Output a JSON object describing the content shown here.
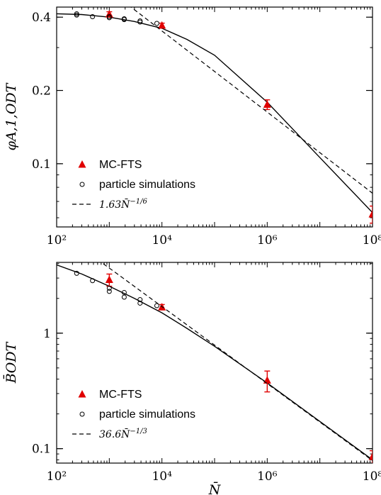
{
  "chart_data": [
    {
      "type": "scatter",
      "xlabel": "",
      "ylabel": "φA,1,ODT",
      "xscale": "log",
      "yscale": "log",
      "xlim": [
        100,
        100000000
      ],
      "ylim": [
        0.055,
        0.44
      ],
      "x_ticks": [
        {
          "v": 100,
          "label": "10²"
        },
        {
          "v": 10000,
          "label": "10⁴"
        },
        {
          "v": 1000000,
          "label": "10⁶"
        },
        {
          "v": 100000000,
          "label": "10⁸"
        }
      ],
      "y_ticks": [
        {
          "v": 0.1,
          "label": "0.1"
        },
        {
          "v": 0.2,
          "label": "0.2"
        },
        {
          "v": 0.4,
          "label": "0.4"
        }
      ],
      "legend_position": "lower-left",
      "series": [
        {
          "name": "MC-FTS",
          "marker": "triangle",
          "color": "#e00000",
          "x": [
            1000,
            10000,
            1000000,
            100000000
          ],
          "y": [
            0.411,
            0.37,
            0.175,
            0.062
          ],
          "err": [
            0.01,
            0.008,
            0.008,
            0.005
          ]
        },
        {
          "name": "particle simulations",
          "marker": "circle-open",
          "color": "#000000",
          "x": [
            240,
            240,
            480,
            1000,
            1000,
            1920,
            1920,
            3840,
            3840,
            8000
          ],
          "y": [
            0.413,
            0.408,
            0.402,
            0.402,
            0.398,
            0.394,
            0.391,
            0.386,
            0.382,
            0.377
          ]
        },
        {
          "name": "1.63N̄−1/6",
          "style": "dashed",
          "legend_label_text": "1.63N̄",
          "legend_label_sup": "−1/6",
          "formula": {
            "coef": 1.63,
            "exp": -0.1666667
          },
          "x_range": [
            1400,
            100000000
          ]
        }
      ],
      "fit_curve": {
        "style": "solid",
        "x": [
          100,
          300,
          1000,
          3000,
          10000,
          30000,
          100000,
          1000000,
          10000000,
          100000000
        ],
        "y": [
          0.413,
          0.41,
          0.4,
          0.384,
          0.36,
          0.324,
          0.279,
          0.179,
          0.106,
          0.063
        ]
      }
    },
    {
      "type": "scatter",
      "xlabel": "N̄",
      "ylabel": "B̄ODT",
      "xscale": "log",
      "yscale": "log",
      "xlim": [
        100,
        100000000
      ],
      "ylim": [
        0.075,
        4.1
      ],
      "x_ticks": [
        {
          "v": 100,
          "label": "10²"
        },
        {
          "v": 10000,
          "label": "10⁴"
        },
        {
          "v": 1000000,
          "label": "10⁶"
        },
        {
          "v": 100000000,
          "label": "10⁸"
        }
      ],
      "y_ticks": [
        {
          "v": 0.1,
          "label": "0.1"
        },
        {
          "v": 1,
          "label": "1"
        }
      ],
      "legend_position": "lower-left",
      "series": [
        {
          "name": "MC-FTS",
          "marker": "triangle",
          "color": "#e00000",
          "x": [
            1000,
            10000,
            1000000,
            100000000
          ],
          "y": [
            2.9,
            1.68,
            0.39,
            0.085
          ],
          "err": [
            0.35,
            0.09,
            0.08,
            0.011
          ]
        },
        {
          "name": "particle simulations",
          "marker": "circle-open",
          "color": "#000000",
          "x": [
            240,
            480,
            1000,
            1000,
            1920,
            1920,
            3840,
            3840,
            8000
          ],
          "y": [
            3.3,
            2.85,
            2.45,
            2.3,
            2.25,
            2.05,
            1.95,
            1.82,
            1.73
          ]
        },
        {
          "name": "36.6N̄−1/3",
          "style": "dashed",
          "legend_label_text": "36.6N̄",
          "legend_label_sup": "−1/3",
          "formula": {
            "coef": 36.6,
            "exp": -0.3333333
          },
          "x_range": [
            600,
            100000000
          ]
        }
      ],
      "fit_curve": {
        "style": "solid",
        "x": [
          100,
          300,
          1000,
          3000,
          10000,
          30000,
          100000,
          1000000,
          10000000,
          100000000
        ],
        "y": [
          3.9,
          3.25,
          2.55,
          2.0,
          1.5,
          1.1,
          0.77,
          0.37,
          0.172,
          0.08
        ]
      }
    }
  ]
}
